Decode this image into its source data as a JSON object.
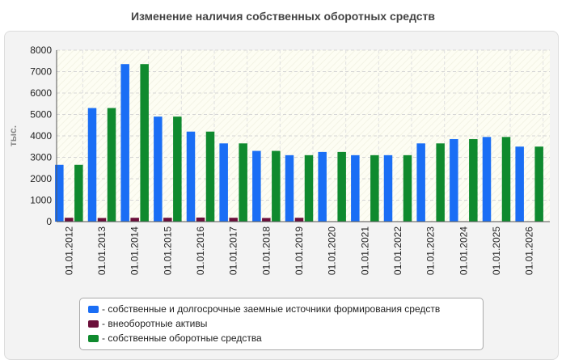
{
  "chart_data": {
    "type": "bar",
    "title": "Изменение наличия собственных оборотных средств",
    "ylabel": "тыс.",
    "xlabel": "",
    "ylim": [
      0,
      8000
    ],
    "yticks": [
      "0",
      "1000",
      "2000",
      "3000",
      "4000",
      "5000",
      "6000",
      "7000",
      "8000"
    ],
    "grid": true,
    "legend_position": "bottom",
    "categories": [
      "01.01.2012",
      "01.01.2013",
      "01.01.2014",
      "01.01.2015",
      "01.01.2016",
      "01.01.2017",
      "01.01.2018",
      "01.01.2019",
      "01.01.2020",
      "01.01.2021",
      "01.01.2022",
      "01.01.2023",
      "01.01.2024",
      "01.01.2025",
      "01.01.2026"
    ],
    "series": [
      {
        "name": "- собственные и долгосрочные заемные источники формирования средств",
        "color": "#1a6ef5",
        "values": [
          2650,
          5300,
          7350,
          4900,
          4200,
          3650,
          3300,
          3100,
          3250,
          3100,
          3100,
          3650,
          3850,
          3950,
          3500
        ]
      },
      {
        "name": "- внеоборотные активы",
        "color": "#6b0f3a",
        "values": [
          180,
          170,
          180,
          180,
          190,
          180,
          170,
          180,
          20,
          20,
          20,
          20,
          20,
          20,
          20
        ]
      },
      {
        "name": "- собственные оборотные средства",
        "color": "#0f8a2e",
        "values": [
          2650,
          5300,
          7350,
          4900,
          4200,
          3650,
          3300,
          3100,
          3250,
          3100,
          3100,
          3650,
          3850,
          3950,
          3500
        ]
      }
    ]
  }
}
